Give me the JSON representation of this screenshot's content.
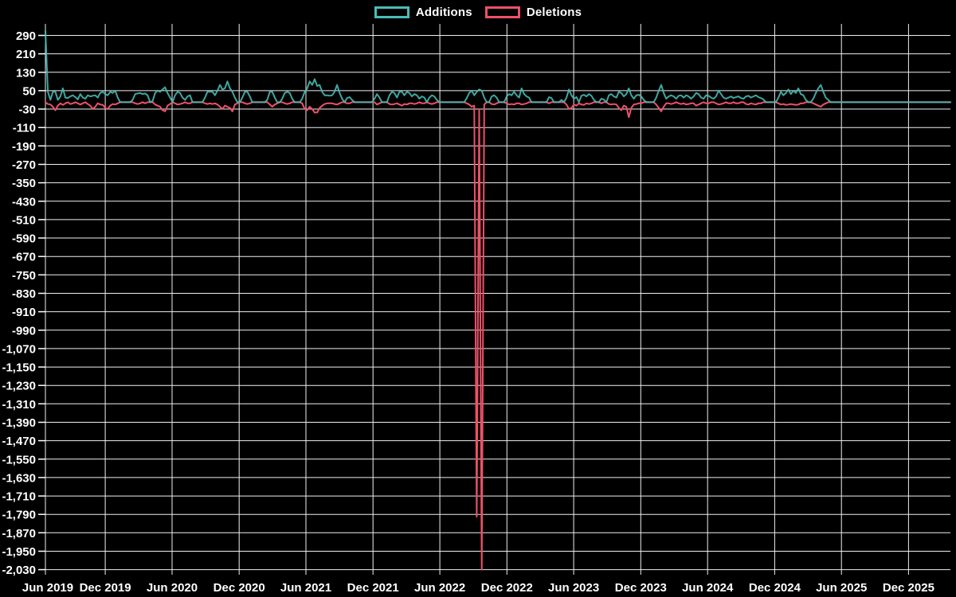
{
  "colors": {
    "background": "#000000",
    "grid": "#efefef",
    "text": "#ffffff",
    "additions": "#48bdb6",
    "deletions": "#ee5168"
  },
  "chart_data": {
    "type": "line",
    "title": "",
    "xlabel": "",
    "ylabel": "",
    "grid": true,
    "legend_position": "top-center",
    "total_weeks": 364,
    "ylim": [
      -2052,
      340
    ],
    "x_axis": {
      "tick_labels": [
        "Jun 2019",
        "Dec 2019",
        "Jun 2020",
        "Dec 2020",
        "Jun 2021",
        "Dec 2021",
        "Jun 2022",
        "Dec 2022",
        "Jun 2023",
        "Dec 2023",
        "Jun 2024",
        "Dec 2024",
        "Jun 2025",
        "Dec 2025"
      ],
      "tick_week_positions": [
        -2.9,
        24.0,
        50.8,
        77.7,
        104.5,
        131.4,
        158.2,
        185.1,
        211.9,
        238.8,
        265.6,
        292.5,
        319.3,
        346.2
      ]
    },
    "y_axis": {
      "tick_values": [
        290,
        210,
        130,
        50,
        -30,
        -110,
        -190,
        -270,
        -350,
        -430,
        -510,
        -590,
        -670,
        -750,
        -830,
        -910,
        -990,
        -1070,
        -1150,
        -1230,
        -1310,
        -1390,
        -1470,
        -1550,
        -1630,
        -1710,
        -1790,
        -1870,
        -1950,
        -2030
      ],
      "tick_labels": [
        "290",
        "210",
        "130",
        "50",
        "-30",
        "-110",
        "-190",
        "-270",
        "-350",
        "-430",
        "-510",
        "-590",
        "-670",
        "-750",
        "-830",
        "-910",
        "-990",
        "-1,070",
        "-1,150",
        "-1,230",
        "-1,310",
        "-1,390",
        "-1,470",
        "-1,550",
        "-1,630",
        "-1,710",
        "-1,790",
        "-1,870",
        "-1,950",
        "-2,030"
      ]
    },
    "series": [
      {
        "name": "Additions",
        "color": "#48bdb6",
        "values": [
          310,
          45,
          10,
          45,
          45,
          10,
          25,
          60,
          20,
          18,
          25,
          30,
          22,
          12,
          35,
          20,
          15,
          30,
          25,
          28,
          30,
          20,
          40,
          45,
          35,
          30,
          45,
          40,
          50,
          20,
          0,
          0,
          0,
          0,
          0,
          10,
          35,
          38,
          40,
          35,
          38,
          30,
          0,
          5,
          40,
          50,
          45,
          55,
          65,
          40,
          20,
          0,
          30,
          45,
          40,
          20,
          10,
          25,
          30,
          0,
          0,
          0,
          0,
          0,
          20,
          45,
          45,
          45,
          30,
          50,
          75,
          55,
          60,
          90,
          60,
          45,
          20,
          0,
          0,
          20,
          45,
          45,
          25,
          0,
          0,
          0,
          0,
          0,
          0,
          10,
          45,
          45,
          20,
          0,
          0,
          15,
          40,
          45,
          40,
          15,
          0,
          0,
          0,
          15,
          45,
          60,
          90,
          75,
          100,
          70,
          75,
          45,
          30,
          30,
          28,
          30,
          45,
          75,
          40,
          15,
          0,
          18,
          22,
          10,
          0,
          0,
          0,
          0,
          0,
          0,
          0,
          0,
          15,
          35,
          20,
          0,
          0,
          0,
          30,
          45,
          40,
          20,
          45,
          45,
          30,
          45,
          40,
          25,
          35,
          30,
          15,
          25,
          20,
          0,
          20,
          30,
          25,
          10,
          0,
          0,
          0,
          0,
          0,
          0,
          0,
          0,
          0,
          0,
          0,
          18,
          40,
          50,
          30,
          45,
          55,
          50,
          20,
          0,
          0,
          25,
          30,
          20,
          0,
          0,
          0,
          25,
          35,
          30,
          45,
          30,
          20,
          60,
          35,
          25,
          20,
          0,
          0,
          0,
          0,
          0,
          0,
          0,
          22,
          18,
          0,
          0,
          0,
          10,
          0,
          20,
          55,
          30,
          15,
          22,
          0,
          28,
          32,
          25,
          35,
          28,
          10,
          0,
          0,
          15,
          12,
          0,
          30,
          35,
          25,
          20,
          45,
          40,
          25,
          35,
          60,
          30,
          15,
          30,
          32,
          25,
          10,
          0,
          0,
          0,
          0,
          20,
          50,
          75,
          40,
          15,
          25,
          30,
          25,
          15,
          28,
          30,
          20,
          30,
          25,
          15,
          25,
          40,
          35,
          20,
          15,
          30,
          28,
          20,
          15,
          25,
          50,
          35,
          20,
          15,
          20,
          25,
          18,
          22,
          25,
          18,
          15,
          25,
          28,
          20,
          25,
          30,
          22,
          18,
          12,
          0,
          0,
          0,
          0,
          0,
          20,
          45,
          30,
          40,
          55,
          35,
          50,
          40,
          60,
          35,
          30,
          10,
          0,
          0,
          15,
          40,
          60,
          75,
          45,
          20,
          10,
          0,
          0,
          0,
          0,
          0,
          0,
          0,
          0,
          0,
          0,
          0,
          0,
          0,
          0,
          0,
          0,
          0,
          0,
          0,
          0,
          0,
          0,
          0,
          0,
          0,
          0,
          0,
          0,
          0,
          0,
          0,
          0,
          0,
          0,
          0,
          0,
          0,
          0,
          0,
          0,
          0,
          0,
          0,
          0,
          0,
          0,
          0,
          0,
          0
        ]
      },
      {
        "name": "Deletions",
        "color": "#ee5168",
        "values": [
          0,
          -8,
          -10,
          -20,
          -35,
          -15,
          -5,
          -12,
          -5,
          0,
          -8,
          -5,
          0,
          -5,
          -10,
          -5,
          0,
          -8,
          -15,
          -30,
          -20,
          -5,
          -10,
          -12,
          -25,
          -30,
          -15,
          -8,
          -10,
          -5,
          0,
          0,
          0,
          0,
          0,
          0,
          -5,
          -8,
          -5,
          0,
          -5,
          0,
          0,
          0,
          -10,
          -15,
          -20,
          -35,
          -40,
          -15,
          -8,
          0,
          -5,
          -10,
          -8,
          -5,
          0,
          -5,
          -5,
          0,
          0,
          0,
          0,
          0,
          -5,
          -8,
          -5,
          -8,
          -5,
          -10,
          -20,
          -30,
          -15,
          -20,
          -25,
          -40,
          -10,
          -5,
          0,
          0,
          -5,
          -8,
          -5,
          0,
          0,
          0,
          0,
          0,
          0,
          0,
          -10,
          -20,
          -10,
          -5,
          0,
          0,
          -5,
          -8,
          -5,
          0,
          0,
          0,
          0,
          -5,
          -30,
          -35,
          -20,
          -30,
          -45,
          -45,
          -25,
          -15,
          -8,
          -5,
          -5,
          -5,
          -8,
          -10,
          -5,
          0,
          0,
          -5,
          -5,
          0,
          0,
          0,
          0,
          0,
          0,
          0,
          0,
          0,
          0,
          -10,
          -5,
          0,
          0,
          0,
          -8,
          -10,
          -8,
          -5,
          -10,
          -15,
          -8,
          -10,
          -5,
          -5,
          -8,
          -5,
          0,
          -5,
          -5,
          0,
          -5,
          -8,
          -5,
          0,
          0,
          0,
          0,
          0,
          0,
          0,
          0,
          0,
          0,
          0,
          0,
          -5,
          -10,
          -20,
          -15,
          -1800,
          -30,
          -2030,
          -10,
          0,
          0,
          -8,
          -10,
          -5,
          0,
          0,
          0,
          -5,
          -10,
          -8,
          -10,
          -5,
          -5,
          -10,
          -8,
          -5,
          0,
          0,
          0,
          0,
          0,
          0,
          0,
          0,
          -5,
          0,
          0,
          0,
          0,
          0,
          0,
          -10,
          -30,
          -25,
          -10,
          -15,
          -5,
          -10,
          -12,
          -5,
          -8,
          -5,
          0,
          0,
          0,
          -5,
          0,
          0,
          -8,
          -10,
          -8,
          -10,
          -25,
          -35,
          -15,
          -20,
          -65,
          -25,
          -10,
          -8,
          -5,
          -5,
          0,
          0,
          0,
          0,
          0,
          -10,
          -25,
          -40,
          -20,
          -5,
          -5,
          -8,
          -5,
          0,
          -5,
          -8,
          -5,
          -10,
          -8,
          -5,
          -5,
          -15,
          -10,
          -5,
          0,
          -5,
          -5,
          0,
          0,
          -5,
          -10,
          -8,
          -5,
          0,
          -5,
          -5,
          0,
          -5,
          -5,
          0,
          0,
          -8,
          -10,
          -5,
          -8,
          -10,
          -5,
          -5,
          0,
          0,
          0,
          0,
          0,
          0,
          -5,
          -10,
          -8,
          -12,
          -10,
          -8,
          -10,
          -12,
          -10,
          -5,
          -5,
          0,
          0,
          0,
          -5,
          -10,
          -15,
          -20,
          -10,
          -5,
          0,
          0,
          0,
          0,
          0,
          0,
          0,
          0,
          0,
          0,
          0,
          0,
          0,
          0,
          0,
          0,
          0,
          0,
          0,
          0,
          0,
          0,
          0,
          0,
          0,
          0,
          0,
          0,
          0,
          0,
          0,
          0,
          0,
          0,
          0,
          0,
          0,
          0,
          0,
          0,
          0,
          0,
          0,
          0,
          0,
          0,
          0,
          0,
          0,
          0
        ]
      }
    ]
  }
}
